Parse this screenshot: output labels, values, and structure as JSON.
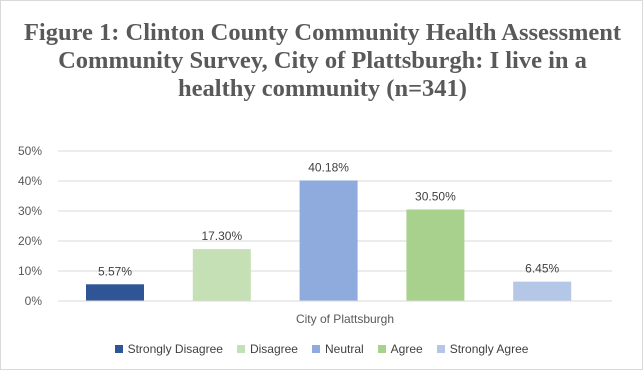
{
  "chart_data": {
    "type": "bar",
    "title": "Figure 1: Clinton County Community Health Assessment Community Survey, City of Plattsburgh: I live in a healthy community (n=341)",
    "categories": [
      "City of Plattsburgh"
    ],
    "series": [
      {
        "name": "Strongly Disagree",
        "values": [
          5.57
        ],
        "label": "5.57%",
        "color": "#2f5597"
      },
      {
        "name": "Disagree",
        "values": [
          17.3
        ],
        "label": "17.30%",
        "color": "#c5e0b4"
      },
      {
        "name": "Neutral",
        "values": [
          40.18
        ],
        "label": "40.18%",
        "color": "#8faadc"
      },
      {
        "name": "Agree",
        "values": [
          30.5
        ],
        "label": "30.50%",
        "color": "#a9d18e"
      },
      {
        "name": "Strongly Agree",
        "values": [
          6.45
        ],
        "label": "6.45%",
        "color": "#b4c7e7"
      }
    ],
    "ylim": [
      0,
      50
    ],
    "yticks": [
      {
        "value": 0,
        "label": "0%"
      },
      {
        "value": 10,
        "label": "10%"
      },
      {
        "value": 20,
        "label": "20%"
      },
      {
        "value": 30,
        "label": "30%"
      },
      {
        "value": 40,
        "label": "40%"
      },
      {
        "value": 50,
        "label": "50%"
      }
    ],
    "grid": true,
    "legend_position": "bottom",
    "xlabel": "",
    "ylabel": ""
  }
}
